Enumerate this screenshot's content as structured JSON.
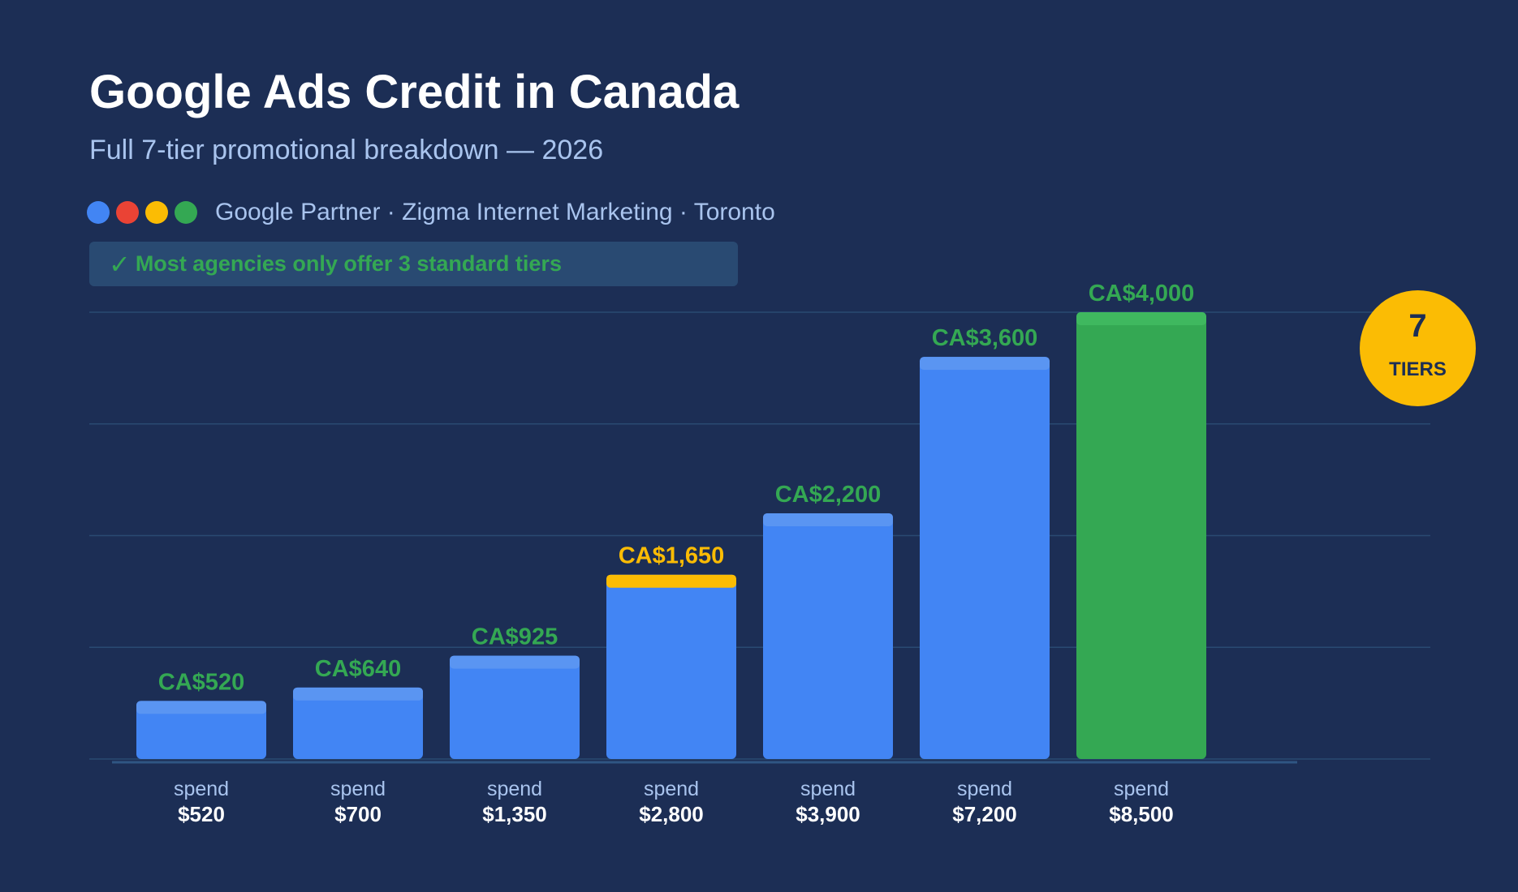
{
  "header": {
    "title": "Google Ads Credit in Canada",
    "subtitle": "Full 7-tier promotional breakdown — 2026"
  },
  "brand": {
    "dots": [
      "#4285f4",
      "#ea4335",
      "#fbbc04",
      "#34a853"
    ],
    "text": "Google Partner · Zigma Internet Marketing · Toronto"
  },
  "note": {
    "check": "✓",
    "text": "Most agencies only offer 3 standard tiers"
  },
  "badge": {
    "number": "7",
    "label": "TIERS"
  },
  "colors": {
    "background": "#1c2e55",
    "bar": "#4285f4",
    "bar_cap": "#5a95f2",
    "highlight_cap": "#fbbc04",
    "final_bar": "#34a853",
    "final_cap": "#3fb85f",
    "value_label": "#34a853",
    "highlight_label": "#fbbc04",
    "gridline": "#2a4a72",
    "axis_sub": "#a9c4ee",
    "axis_main": "#ffffff"
  },
  "chart_data": {
    "type": "bar",
    "x_prefix": "spend",
    "categories": [
      "$520",
      "$700",
      "$1,350",
      "$2,800",
      "$3,900",
      "$7,200",
      "$8,500"
    ],
    "values": [
      520,
      640,
      925,
      1650,
      2200,
      3600,
      4000
    ],
    "value_labels": [
      "CA$520",
      "CA$640",
      "CA$925",
      "CA$1,650",
      "CA$2,200",
      "CA$3,600",
      "CA$4,000"
    ],
    "highlight_index": 3,
    "final_index": 6,
    "ylim": [
      0,
      4000
    ],
    "grid": true,
    "xlabel": "",
    "ylabel": ""
  }
}
